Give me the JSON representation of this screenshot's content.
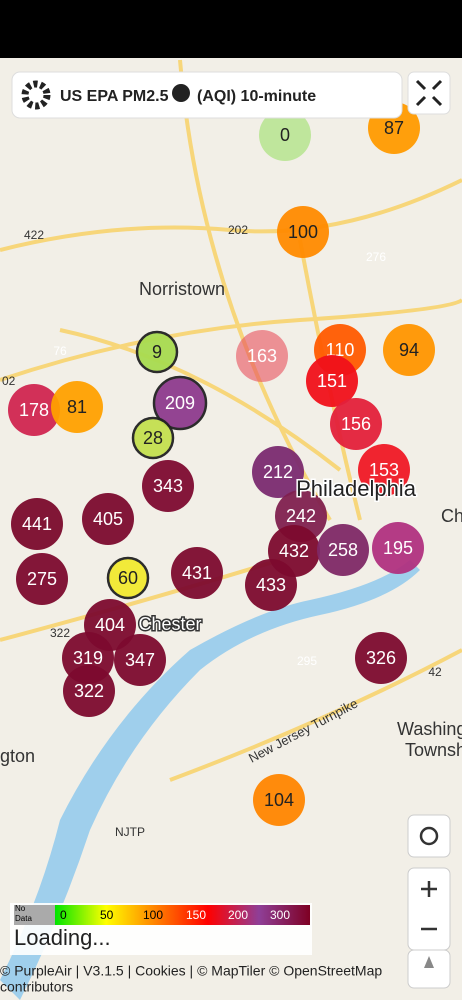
{
  "header": {
    "title": "US EPA PM2.5",
    "title_suffix": "(AQI) 10-minute"
  },
  "places": [
    "Norristown",
    "Philadelphia",
    "Chester",
    "Washing",
    "Townsh",
    "gton",
    "Ch"
  ],
  "roads": [
    "New Jersey Turnpike",
    "422",
    "202",
    "276",
    "76",
    "322",
    "295",
    "42",
    "NJTP",
    "02"
  ],
  "markers": [
    {
      "label": "0",
      "color": "#9de06a"
    },
    {
      "label": "87",
      "color": "#ff9a00"
    },
    {
      "label": "100",
      "color": "#ff8a00"
    },
    {
      "label": "163",
      "color": "#e8505e"
    },
    {
      "label": "110",
      "color": "#ff5a00"
    },
    {
      "label": "94",
      "color": "#ff9500"
    },
    {
      "label": "9",
      "color": "#a8dc50"
    },
    {
      "label": "151",
      "color": "#f0101a"
    },
    {
      "label": "178",
      "color": "#d02550"
    },
    {
      "label": "81",
      "color": "#ffa000"
    },
    {
      "label": "209",
      "color": "#8e3b8e"
    },
    {
      "label": "156",
      "color": "#e3203a"
    },
    {
      "label": "28",
      "color": "#c4e050"
    },
    {
      "label": "343",
      "color": "#7d0a30"
    },
    {
      "label": "212",
      "color": "#7a2a70"
    },
    {
      "label": "153",
      "color": "#ef1825"
    },
    {
      "label": "441",
      "color": "#7a0a2c"
    },
    {
      "label": "405",
      "color": "#7b0a2e"
    },
    {
      "label": "242",
      "color": "#80204f"
    },
    {
      "label": "432",
      "color": "#7c0a2e"
    },
    {
      "label": "258",
      "color": "#7e2866"
    },
    {
      "label": "195",
      "color": "#b03080"
    },
    {
      "label": "275",
      "color": "#7c0a2e"
    },
    {
      "label": "60",
      "color": "#f2ea30"
    },
    {
      "label": "431",
      "color": "#7c0a2e"
    },
    {
      "label": "433",
      "color": "#7c0a2e"
    },
    {
      "label": "404",
      "color": "#7c0a2e"
    },
    {
      "label": "319",
      "color": "#7c0a2e"
    },
    {
      "label": "347",
      "color": "#7c0a2e"
    },
    {
      "label": "322",
      "color": "#7c0a2e"
    },
    {
      "label": "326",
      "color": "#7c0a2e"
    },
    {
      "label": "104",
      "color": "#ff8500"
    }
  ],
  "legend": {
    "no_data": [
      "No",
      "Data"
    ],
    "labels": [
      "0",
      "50",
      "100",
      "150",
      "200",
      "300"
    ]
  },
  "status": "Loading...",
  "attribution": [
    "© PurpleAir | V3.1.5 | Cookies | © MapTiler © OpenStreetMap",
    "contributors"
  ]
}
